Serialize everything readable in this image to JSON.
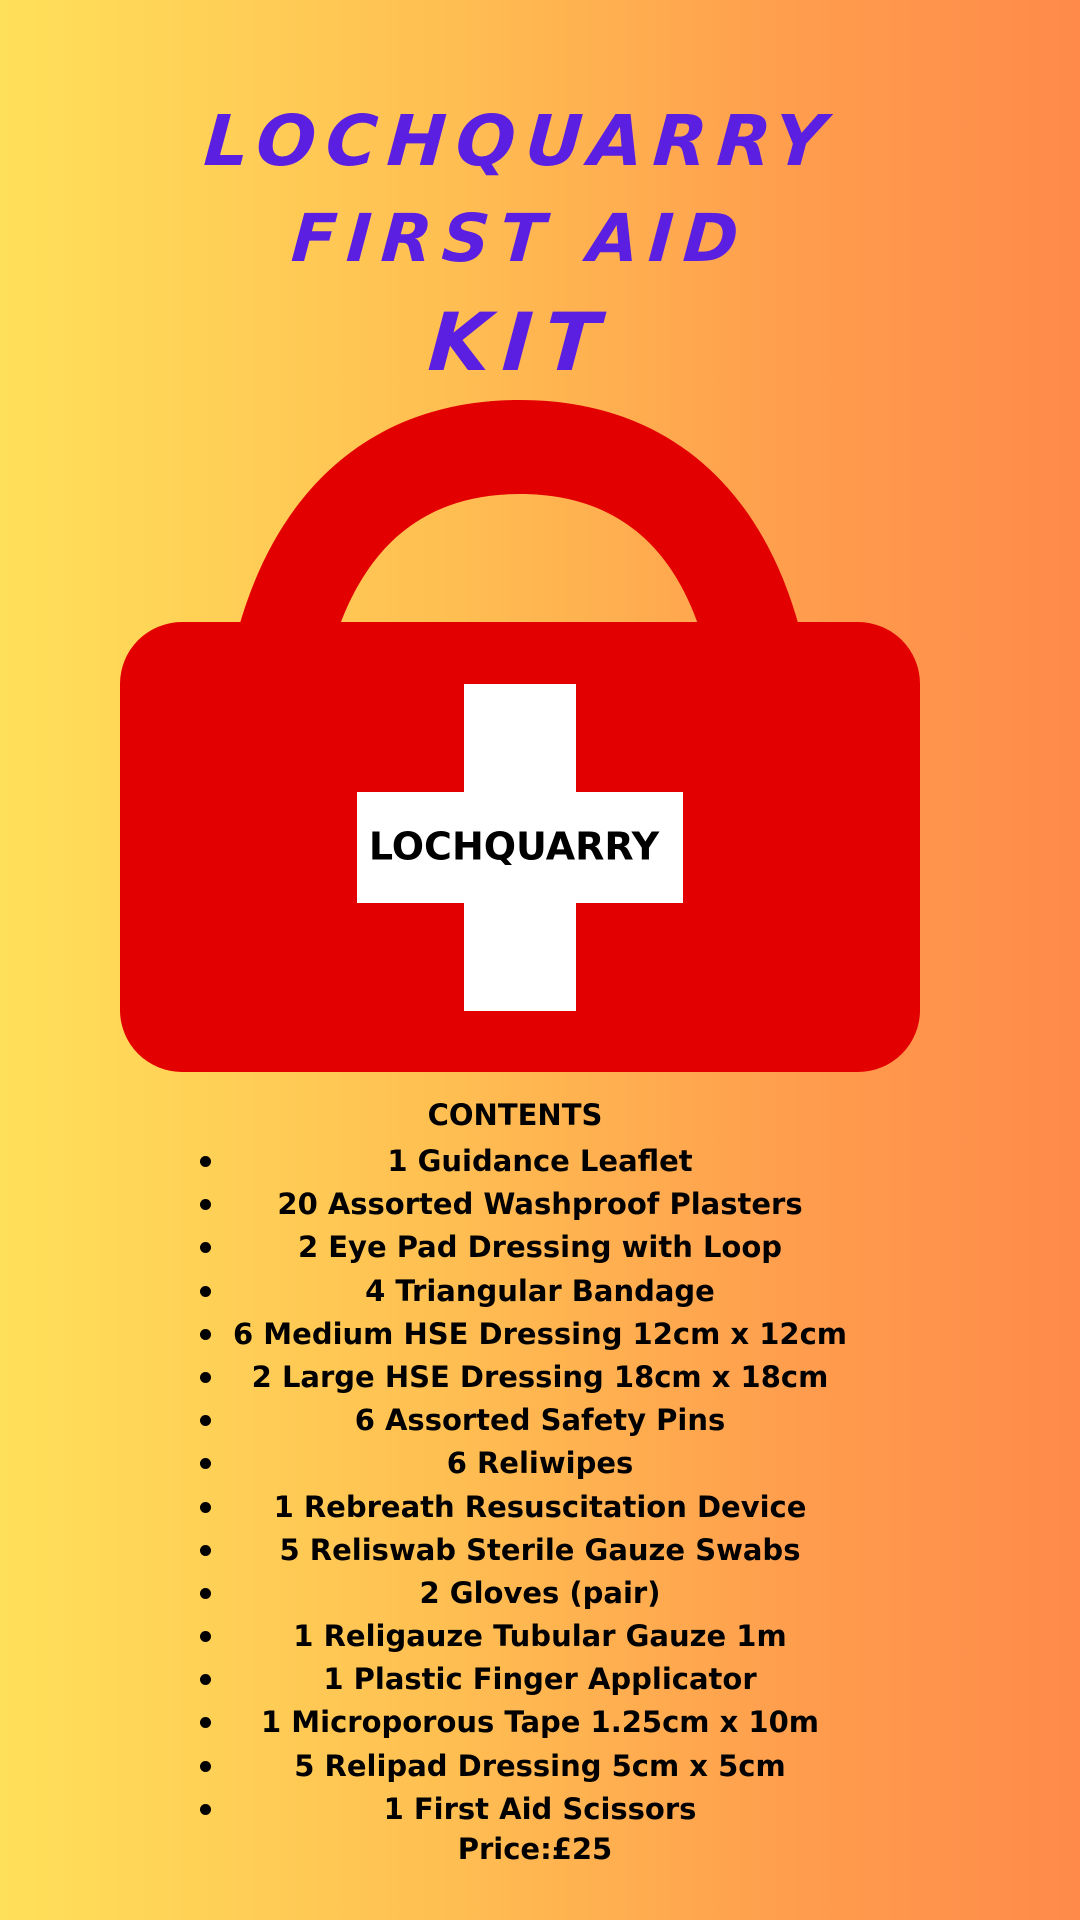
{
  "title": {
    "line1": "LOCHQUARRY",
    "line2": "FIRST AID",
    "line3": "KIT"
  },
  "kit": {
    "label": "LOCHQUARRY",
    "body_color": "#e30000",
    "cross_color": "#ffffff",
    "title_color": "#5a1fe0"
  },
  "contents": {
    "heading": "CONTENTS",
    "items": [
      "1 Guidance Leaflet",
      "20 Assorted Washproof Plasters",
      "2 Eye Pad Dressing with Loop",
      "4 Triangular Bandage",
      "6 Medium HSE Dressing 12cm x 12cm",
      "2 Large HSE Dressing 18cm x 18cm",
      "6 Assorted Safety Pins",
      "6 Reliwipes",
      "1 Rebreath Resuscitation Device",
      "5 Reliswab Sterile Gauze Swabs",
      "2 Gloves (pair)",
      "1 Religauze Tubular Gauze 1m",
      "1 Plastic Finger Applicator",
      "1 Microporous Tape 1.25cm x 10m",
      "5 Relipad Dressing 5cm x 5cm",
      "1 First Aid Scissors"
    ]
  },
  "price": "Price:£25"
}
